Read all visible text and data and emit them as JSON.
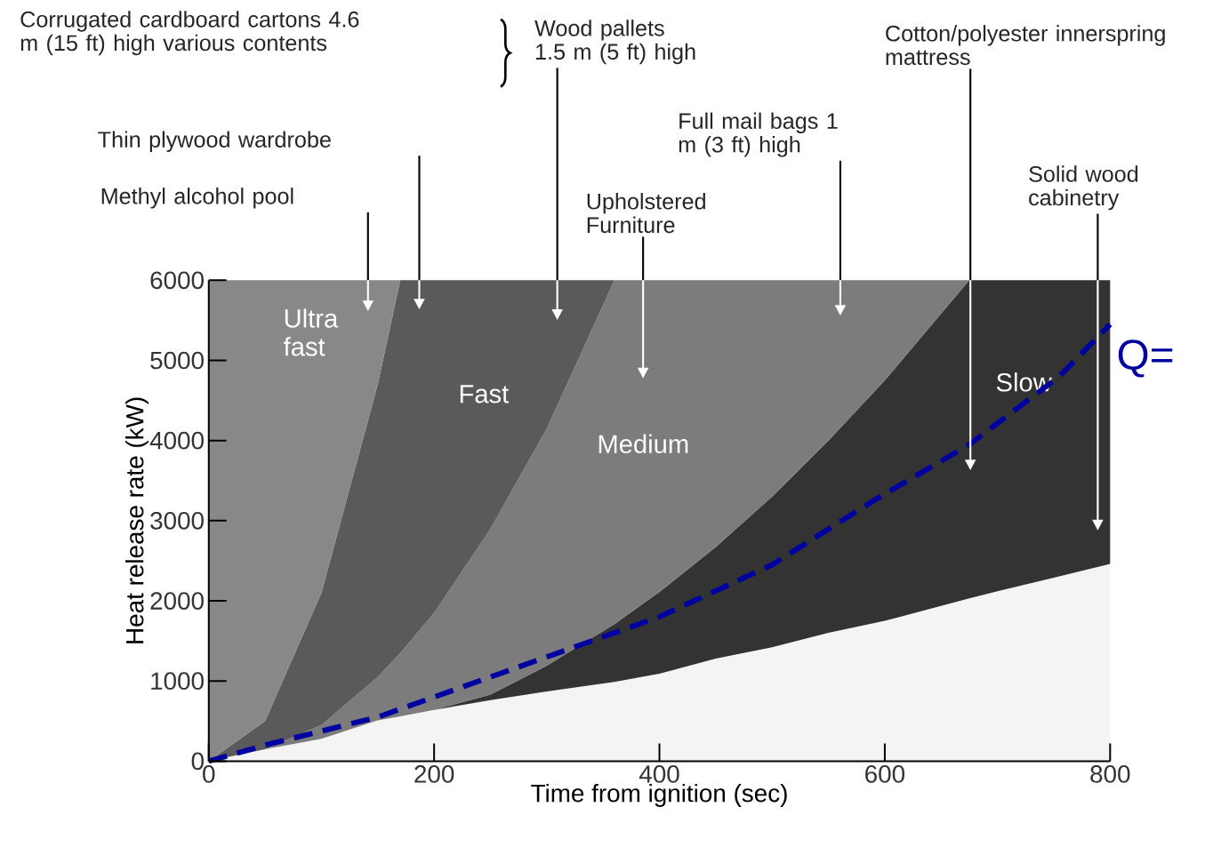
{
  "chart_data": {
    "type": "area",
    "stacked": true,
    "xlabel": "Time from ignition (sec)",
    "ylabel": "Heat release rate (kW)",
    "xlim": [
      0,
      800
    ],
    "ylim": [
      0,
      6000
    ],
    "xticks": [
      0,
      200,
      400,
      600,
      800
    ],
    "yticks": [
      0,
      1000,
      2000,
      3000,
      4000,
      5000,
      6000
    ],
    "grid": false,
    "x": [
      0,
      50,
      100,
      150,
      170,
      200,
      250,
      300,
      360,
      400,
      450,
      500,
      550,
      600,
      675,
      700,
      750,
      800
    ],
    "series": [
      {
        "color": "#f4f4f4",
        "values": [
          0,
          150,
          280,
          510,
          560,
          640,
          760,
          870,
          990,
          1090,
          1280,
          1420,
          1600,
          1750,
          2030,
          2120,
          2290,
          2460
        ]
      },
      {
        "name": "Slow",
        "color": "#333333",
        "values": [
          null,
          null,
          null,
          null,
          null,
          0,
          70,
          320,
          720,
          1020,
          1390,
          1880,
          2400,
          3000,
          3970,
          3880,
          3710,
          3540
        ]
      },
      {
        "name": "Medium",
        "color": "#7c7c7c",
        "values": [
          null,
          0,
          170,
          540,
          790,
          1210,
          2070,
          2960,
          4290,
          3890,
          3330,
          2700,
          2000,
          1250,
          0,
          null,
          null,
          null
        ]
      },
      {
        "name": "Fast",
        "color": "#5a5a5a",
        "values": [
          0,
          350,
          1650,
          3650,
          4650,
          4150,
          3100,
          1850,
          0,
          null,
          null,
          null,
          null,
          null,
          null,
          null,
          null,
          null
        ]
      },
      {
        "name": "Ultra fast",
        "color": "#888888",
        "values": [
          6000,
          5500,
          3900,
          1300,
          0,
          null,
          null,
          null,
          null,
          null,
          null,
          null,
          null,
          null,
          null,
          null,
          null,
          null
        ]
      },
      {
        "type": "line",
        "color": "#0000a0",
        "line_style": "dashed",
        "x": [
          0,
          50,
          150,
          260,
          400,
          500,
          590,
          675,
          755,
          800
        ],
        "values": [
          0,
          200,
          550,
          1100,
          1800,
          2450,
          3250,
          3950,
          4800,
          5450
        ]
      }
    ],
    "annotations": [
      "Corrugated cardboard cartons 4.6 m (15 ft) high various contents",
      "Wood pallets 1.5 m (5 ft) high",
      "Thin plywood wardrobe",
      "Methyl alcohol pool",
      "Upholstered Furniture",
      "Full mail bags 1 m (3 ft) high",
      "Cotton/polyester innerspring mattress",
      "Solid wood cabinetry",
      "Q="
    ]
  }
}
